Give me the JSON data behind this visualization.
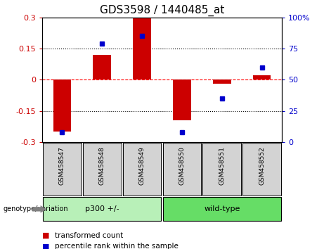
{
  "title": "GDS3598 / 1440485_at",
  "samples": [
    "GSM458547",
    "GSM458548",
    "GSM458549",
    "GSM458550",
    "GSM458551",
    "GSM458552"
  ],
  "bar_values": [
    -0.25,
    0.12,
    0.3,
    -0.195,
    -0.02,
    0.02
  ],
  "percentile_values": [
    8,
    79,
    85,
    8,
    35,
    60
  ],
  "bar_color": "#cc0000",
  "dot_color": "#0000cc",
  "ylim_left": [
    -0.3,
    0.3
  ],
  "ylim_right": [
    0,
    100
  ],
  "yticks_left": [
    -0.3,
    -0.15,
    0,
    0.15,
    0.3
  ],
  "yticks_right": [
    0,
    25,
    50,
    75,
    100
  ],
  "hlines": [
    -0.15,
    0.0,
    0.15
  ],
  "hline_styles": [
    "dotted",
    "dashed",
    "dotted"
  ],
  "hline_colors": [
    "black",
    "red",
    "black"
  ],
  "group_label": "genotype/variation",
  "group_spans": [
    [
      0,
      2,
      "p300 +/-",
      "#b8f0b8"
    ],
    [
      3,
      5,
      "wild-type",
      "#66dd66"
    ]
  ],
  "legend_bar_label": "transformed count",
  "legend_dot_label": "percentile rank within the sample",
  "bar_width": 0.45,
  "axis_bg": "white",
  "title_fontsize": 11,
  "tick_fontsize": 8,
  "label_bg": "#d3d3d3"
}
